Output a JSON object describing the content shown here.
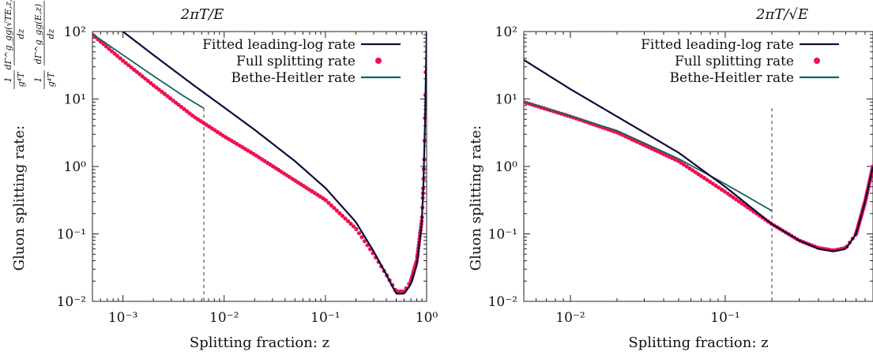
{
  "chart_data": [
    {
      "type": "line",
      "top_label": "2πT/E",
      "xlabel": "Splitting fraction: z",
      "ylabel": "Gluon splitting rate:",
      "ylabel_frac_num": "dΓ^g_gg(E,z)",
      "ylabel_frac_den_left": "1",
      "ylabel_frac_den_right": "g⁴T",
      "ylabel_frac_den_dz": "dz",
      "x_scale": "log",
      "y_scale": "log",
      "xlim": [
        0.0005,
        1.0
      ],
      "ylim": [
        0.01,
        100
      ],
      "xticks": [
        "10⁻³",
        "10⁻²",
        "10⁻¹",
        "10⁰"
      ],
      "yticks": [
        "10⁻²",
        "10⁻¹",
        "10⁰",
        "10¹",
        "10²"
      ],
      "vline_x": 0.0063,
      "legend_position": "top-right",
      "series": [
        {
          "name": "Fitted leading-log rate",
          "style": "line",
          "color": "#0f0b3c",
          "x": [
            0.0005,
            0.001,
            0.002,
            0.005,
            0.01,
            0.02,
            0.05,
            0.1,
            0.2,
            0.3,
            0.4,
            0.5,
            0.6,
            0.7,
            0.8,
            0.9,
            0.95,
            0.98,
            1.0
          ],
          "y": [
            200,
            100,
            45,
            16,
            7.5,
            3.5,
            1.2,
            0.48,
            0.15,
            0.055,
            0.025,
            0.013,
            0.013,
            0.018,
            0.035,
            0.15,
            1.2,
            20,
            100
          ]
        },
        {
          "name": "Full splitting rate",
          "style": "points",
          "color": "#ee1150",
          "x": [
            0.0005,
            0.001,
            0.002,
            0.005,
            0.01,
            0.02,
            0.05,
            0.1,
            0.2,
            0.3,
            0.4,
            0.5,
            0.6,
            0.7,
            0.8,
            0.9,
            0.95,
            0.98
          ],
          "y": [
            90,
            37,
            16,
            5.5,
            2.8,
            1.5,
            0.62,
            0.32,
            0.12,
            0.05,
            0.025,
            0.014,
            0.014,
            0.02,
            0.04,
            0.17,
            1.4,
            25
          ]
        },
        {
          "name": "Bethe-Heitler rate",
          "style": "line",
          "color": "#146262",
          "x": [
            0.0005,
            0.001,
            0.002,
            0.004,
            0.0063
          ],
          "y": [
            92,
            45,
            22,
            11,
            7.3
          ]
        }
      ]
    },
    {
      "type": "line",
      "top_label": "2πT/√E",
      "xlabel": "Splitting fraction: z",
      "ylabel": "Gluon splitting rate:",
      "ylabel_frac_num": "dΓ^g_gg(√TE,z)",
      "ylabel_frac_den_left": "1",
      "ylabel_frac_den_right": "g⁴T",
      "ylabel_frac_den_dz": "dz",
      "x_scale": "log",
      "y_scale": "log",
      "xlim": [
        0.005,
        0.9
      ],
      "ylim": [
        0.01,
        100
      ],
      "xticks": [
        "10⁻²",
        "10⁻¹"
      ],
      "yticks": [
        "10⁻²",
        "10⁻¹",
        "10⁰",
        "10¹",
        "10²"
      ],
      "vline_x": 0.2,
      "legend_position": "top-right",
      "series": [
        {
          "name": "Fitted leading-log rate",
          "style": "line",
          "color": "#0f0b3c",
          "x": [
            0.005,
            0.01,
            0.02,
            0.05,
            0.1,
            0.2,
            0.3,
            0.4,
            0.5,
            0.6,
            0.7,
            0.8,
            0.9
          ],
          "y": [
            38,
            14,
            5.5,
            1.6,
            0.5,
            0.14,
            0.08,
            0.06,
            0.055,
            0.06,
            0.1,
            0.3,
            1.0
          ]
        },
        {
          "name": "Full splitting rate",
          "style": "points",
          "color": "#ee1150",
          "x": [
            0.005,
            0.01,
            0.02,
            0.05,
            0.1,
            0.2,
            0.3,
            0.4,
            0.5,
            0.6,
            0.7,
            0.8,
            0.9
          ],
          "y": [
            9,
            5.5,
            3.2,
            1.2,
            0.42,
            0.14,
            0.08,
            0.062,
            0.057,
            0.062,
            0.1,
            0.3,
            1.0
          ]
        },
        {
          "name": "Bethe-Heitler rate",
          "style": "line",
          "color": "#146262",
          "x": [
            0.005,
            0.01,
            0.02,
            0.05,
            0.1,
            0.2
          ],
          "y": [
            9.2,
            5.6,
            3.4,
            1.3,
            0.55,
            0.22
          ]
        }
      ]
    }
  ]
}
